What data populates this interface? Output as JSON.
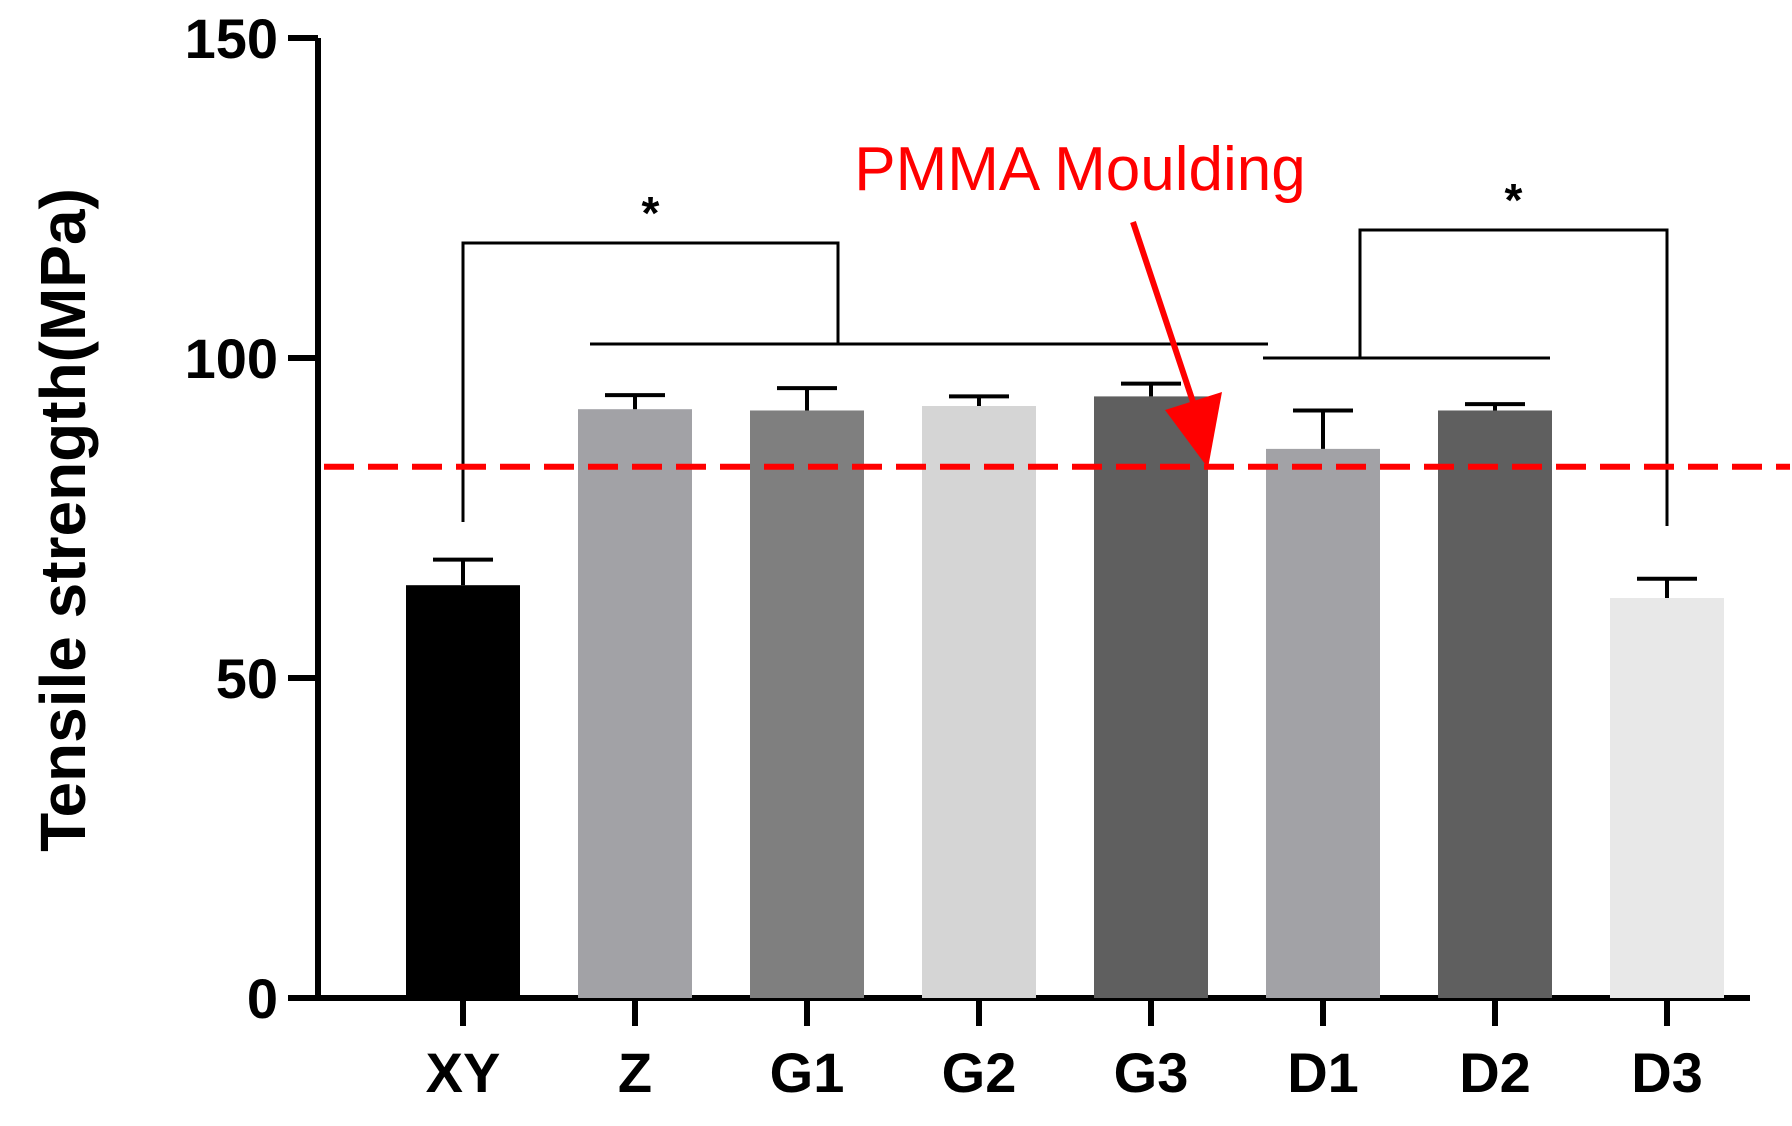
{
  "chart_data": {
    "type": "bar",
    "ylabel": "Tensile strength(MPa)",
    "ylim": [
      0,
      150
    ],
    "yticks": [
      0,
      50,
      100,
      150
    ],
    "categories": [
      "XY",
      "Z",
      "G1",
      "G2",
      "G3",
      "D1",
      "D2",
      "D3"
    ],
    "values": [
      64.5,
      92,
      91.8,
      92.5,
      94,
      85.8,
      91.8,
      62.5
    ],
    "errors": [
      4,
      2.2,
      3.5,
      1.5,
      2,
      6,
      1,
      3
    ],
    "colors": [
      "#000000",
      "#a2a2a6",
      "#7f7f7f",
      "#d5d5d5",
      "#5f5f5f",
      "#a2a2a6",
      "#5f5f5f",
      "#e8e8e8"
    ],
    "reference_line": {
      "label": "PMMA Moulding",
      "value": 83,
      "color": "#ff0000"
    },
    "significance": [
      {
        "label": "*",
        "from": [
          "XY"
        ],
        "to": [
          "Z",
          "G1",
          "G2",
          "G3",
          "D1"
        ]
      },
      {
        "label": "*",
        "from": [
          "D1",
          "D2"
        ],
        "to": [
          "D3"
        ]
      }
    ],
    "grid": false,
    "legend": "none"
  }
}
